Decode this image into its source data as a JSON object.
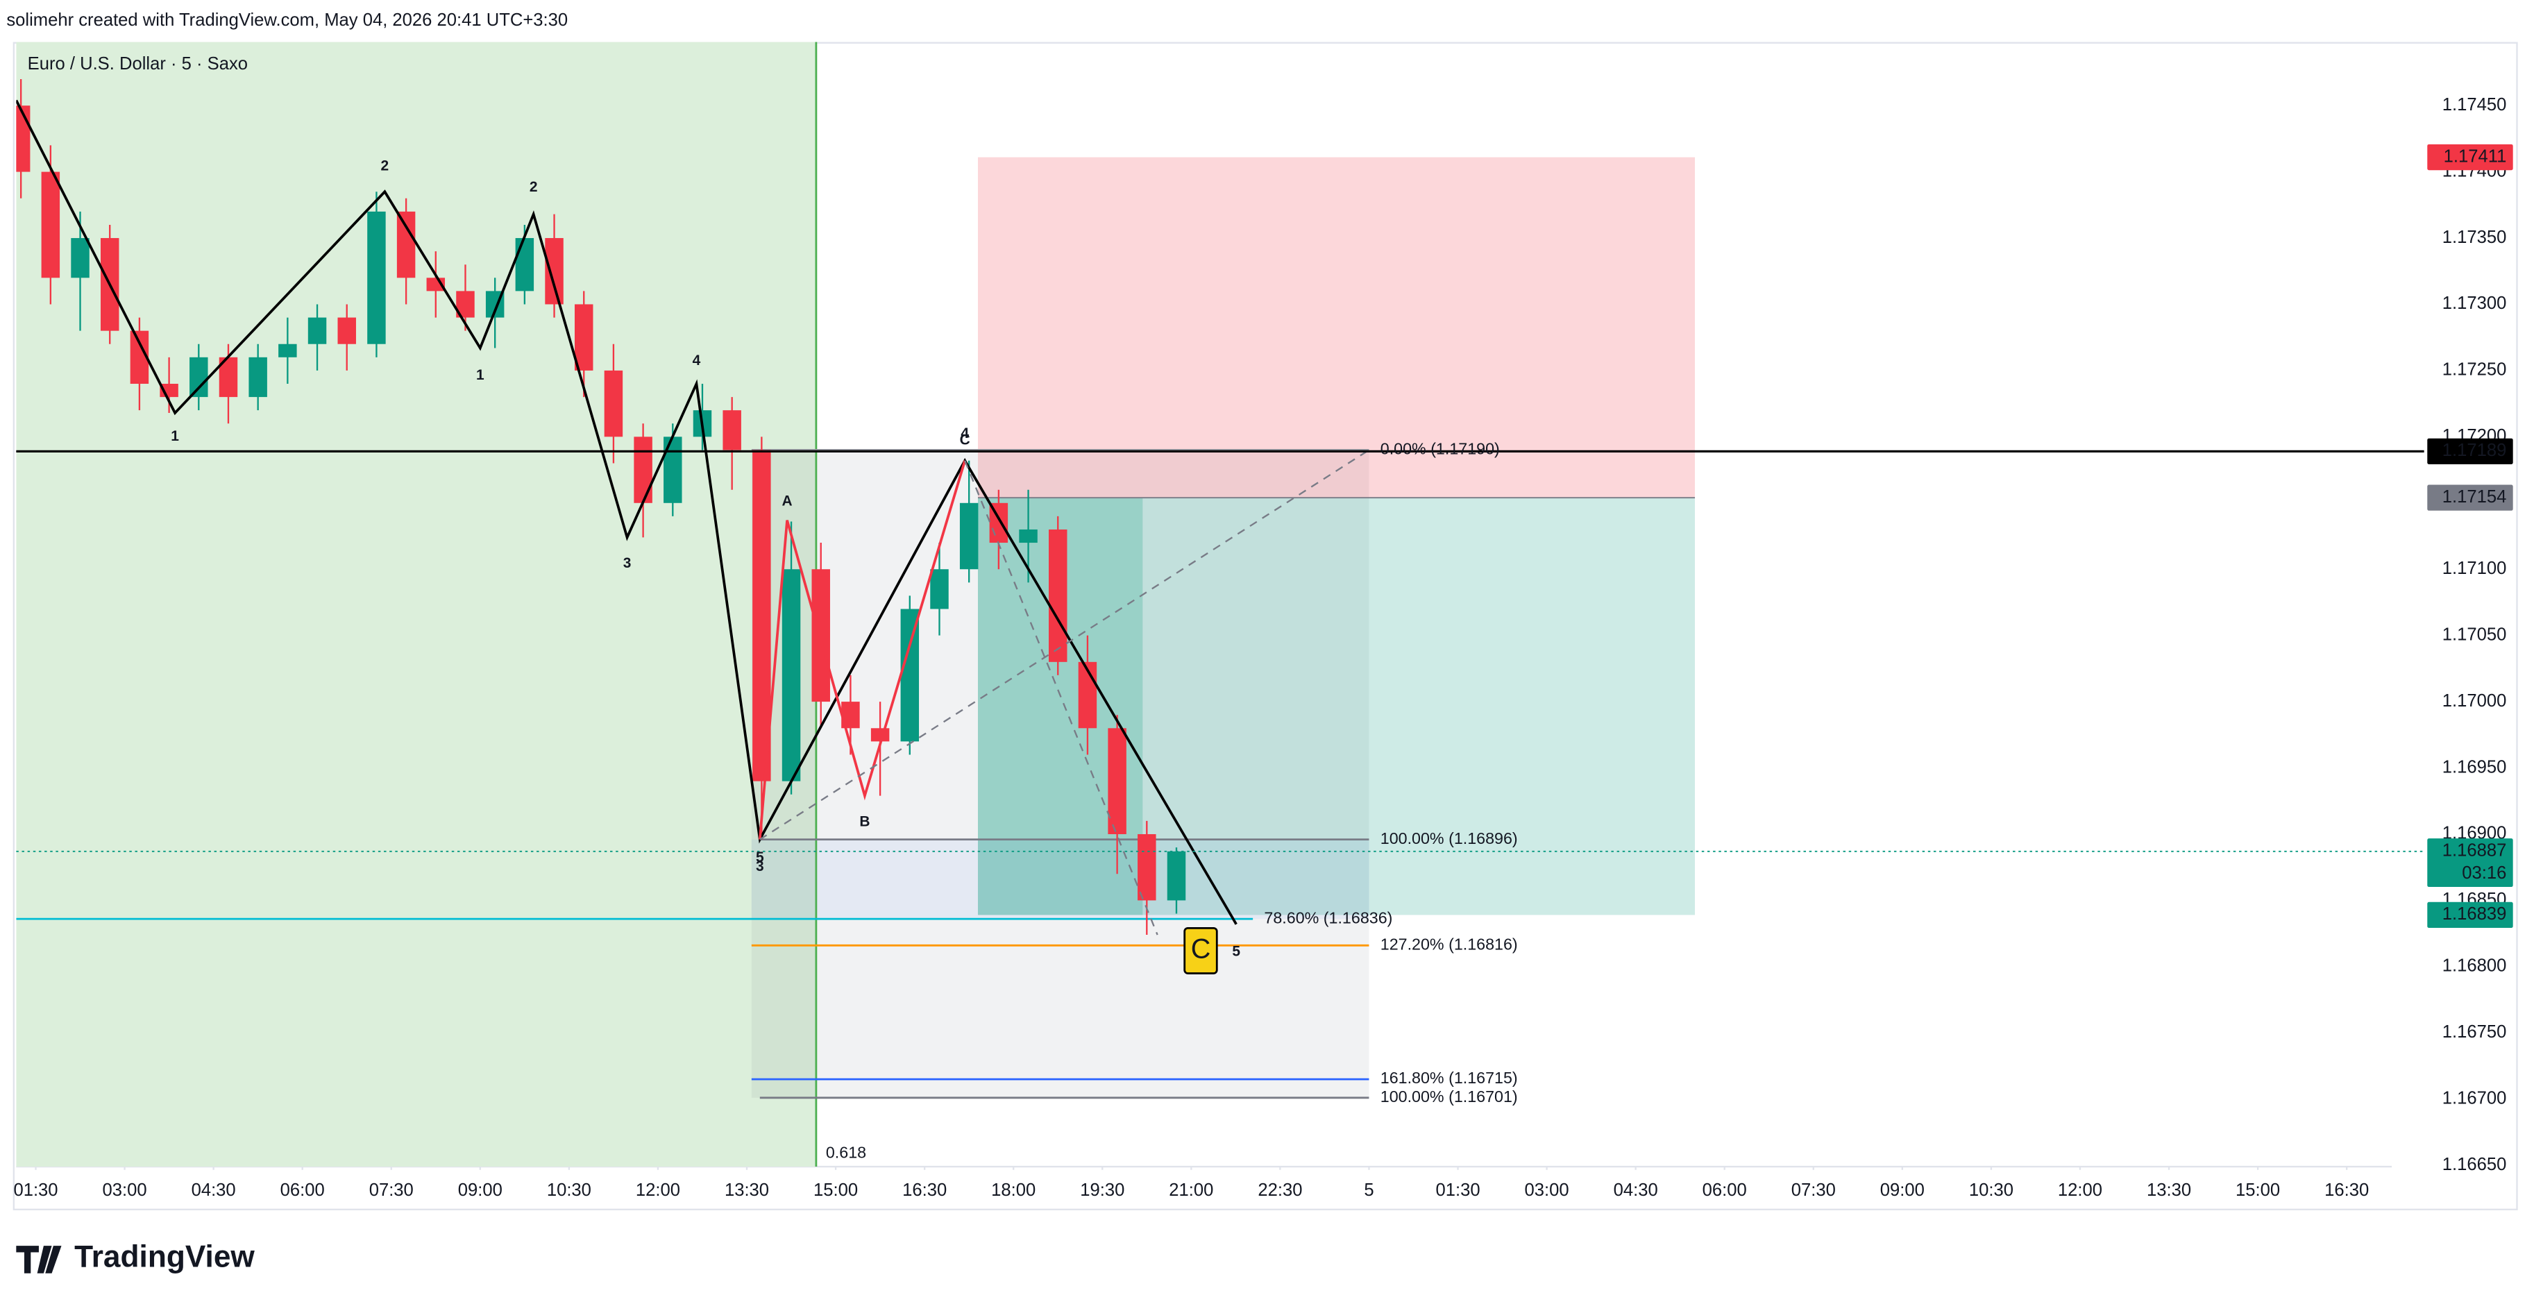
{
  "header": {
    "credit": "solimehr created with TradingView.com, May 04, 2026 20:41 UTC+3:30"
  },
  "footer": {
    "brand": "TradingView"
  },
  "chart_data": {
    "type": "candlestick",
    "title": "Euro / U.S. Dollar · 5 · Saxo",
    "x": [
      1.0,
      1.5,
      2.0,
      2.5,
      3.0,
      3.5,
      4.0,
      4.5,
      5.0,
      5.5,
      6.0,
      6.5,
      7.0,
      7.5,
      8.0,
      8.5,
      9.0,
      9.5,
      10.0,
      10.5,
      11.0,
      11.5,
      12.0,
      12.5,
      13.0,
      13.5,
      14.0,
      14.5,
      15.0,
      15.5,
      16.0,
      16.5,
      17.0,
      17.5,
      18.0,
      18.5,
      19.0,
      19.5,
      20.0,
      20.5
    ],
    "open": [
      1.1745,
      1.174,
      1.1732,
      1.1735,
      1.1728,
      1.1724,
      1.1723,
      1.1726,
      1.1723,
      1.1726,
      1.1727,
      1.1729,
      1.1727,
      1.1737,
      1.1732,
      1.1731,
      1.1729,
      1.1731,
      1.1735,
      1.173,
      1.1725,
      1.172,
      1.1715,
      1.172,
      1.1722,
      1.1719,
      1.1694,
      1.171,
      1.17,
      1.1698,
      1.1697,
      1.1707,
      1.171,
      1.1715,
      1.1712,
      1.1713,
      1.1703,
      1.1698,
      1.169,
      1.1685
    ],
    "high": [
      1.1747,
      1.1742,
      1.1737,
      1.1736,
      1.1729,
      1.1726,
      1.1727,
      1.1727,
      1.1727,
      1.1729,
      1.173,
      1.173,
      1.17385,
      1.1738,
      1.1734,
      1.1733,
      1.1732,
      1.1736,
      1.17368,
      1.1731,
      1.1727,
      1.1721,
      1.1721,
      1.1724,
      1.1723,
      1.172,
      1.17136,
      1.1712,
      1.1702,
      1.17,
      1.1708,
      1.1712,
      1.17182,
      1.1716,
      1.1716,
      1.1714,
      1.1705,
      1.1699,
      1.1691,
      1.1689
    ],
    "low": [
      1.1738,
      1.173,
      1.1728,
      1.1727,
      1.1722,
      1.17218,
      1.1722,
      1.1721,
      1.1722,
      1.1724,
      1.1725,
      1.1725,
      1.1726,
      1.173,
      1.1729,
      1.1728,
      1.17267,
      1.173,
      1.1729,
      1.1723,
      1.1718,
      1.17124,
      1.1714,
      1.1719,
      1.1716,
      1.16896,
      1.1693,
      1.1698,
      1.1696,
      1.16929,
      1.1696,
      1.1705,
      1.1709,
      1.171,
      1.1709,
      1.1702,
      1.1696,
      1.1687,
      1.16824,
      1.1684
    ],
    "close": [
      1.174,
      1.1732,
      1.1735,
      1.1728,
      1.1724,
      1.1723,
      1.1726,
      1.1723,
      1.1726,
      1.1727,
      1.1729,
      1.1727,
      1.1737,
      1.1732,
      1.1731,
      1.1729,
      1.1731,
      1.1735,
      1.173,
      1.1725,
      1.172,
      1.1715,
      1.172,
      1.1722,
      1.1719,
      1.1694,
      1.171,
      1.17,
      1.1698,
      1.1697,
      1.1707,
      1.171,
      1.1715,
      1.1712,
      1.1713,
      1.1703,
      1.1698,
      1.169,
      1.1685,
      1.16887
    ],
    "up_color": "#089981",
    "down_color": "#f23645",
    "xlim": [
      1.17,
      41.26
    ],
    "xticks": [
      {
        "value": 1.5,
        "label": "01:30"
      },
      {
        "value": 3.0,
        "label": "03:00"
      },
      {
        "value": 4.5,
        "label": "04:30"
      },
      {
        "value": 6.0,
        "label": "06:00"
      },
      {
        "value": 7.5,
        "label": "07:30"
      },
      {
        "value": 9.0,
        "label": "09:00"
      },
      {
        "value": 10.5,
        "label": "10:30"
      },
      {
        "value": 12.0,
        "label": "12:00"
      },
      {
        "value": 13.5,
        "label": "13:30"
      },
      {
        "value": 15.0,
        "label": "15:00"
      },
      {
        "value": 16.5,
        "label": "16:30"
      },
      {
        "value": 18.0,
        "label": "18:00"
      },
      {
        "value": 19.5,
        "label": "19:30"
      },
      {
        "value": 21.0,
        "label": "21:00"
      },
      {
        "value": 22.5,
        "label": "22:30"
      },
      {
        "value": 24.0,
        "label": "5"
      },
      {
        "value": 25.5,
        "label": "01:30"
      },
      {
        "value": 27.0,
        "label": "03:00"
      },
      {
        "value": 28.5,
        "label": "04:30"
      },
      {
        "value": 30.0,
        "label": "06:00"
      },
      {
        "value": 31.5,
        "label": "07:30"
      },
      {
        "value": 33.0,
        "label": "09:00"
      },
      {
        "value": 34.5,
        "label": "10:30"
      },
      {
        "value": 36.0,
        "label": "12:00"
      },
      {
        "value": 37.5,
        "label": "13:30"
      },
      {
        "value": 39.0,
        "label": "15:00"
      },
      {
        "value": 40.5,
        "label": "16:30"
      }
    ],
    "ylim": [
      1.16649,
      1.17498
    ],
    "yticks": [
      {
        "value": 1.1665,
        "label": "1.16650"
      },
      {
        "value": 1.167,
        "label": "1.16700"
      },
      {
        "value": 1.1675,
        "label": "1.16750"
      },
      {
        "value": 1.168,
        "label": "1.16800"
      },
      {
        "value": 1.1685,
        "label": "1.16850"
      },
      {
        "value": 1.169,
        "label": "1.16900"
      },
      {
        "value": 1.1695,
        "label": "1.16950"
      },
      {
        "value": 1.17,
        "label": "1.17000"
      },
      {
        "value": 1.1705,
        "label": "1.17050"
      },
      {
        "value": 1.171,
        "label": "1.17100"
      },
      {
        "value": 1.1715,
        "label": "1.17150"
      },
      {
        "value": 1.172,
        "label": "1.17200"
      },
      {
        "value": 1.1725,
        "label": "1.17250"
      },
      {
        "value": 1.173,
        "label": "1.17300"
      },
      {
        "value": 1.1735,
        "label": "1.17350"
      },
      {
        "value": 1.174,
        "label": "1.17400"
      },
      {
        "value": 1.1745,
        "label": "1.17450"
      }
    ],
    "grid": false,
    "zone": {
      "x": [
        1.17,
        14.67
      ],
      "color": "#dcefdb"
    },
    "vline": {
      "x": 14.67,
      "label": "0.618",
      "color": "#4caf50"
    },
    "hlines": [
      {
        "y": 1.17189,
        "color": "#000000",
        "dashed": false
      },
      {
        "y": 1.16887,
        "color": "#089981",
        "dashed": true
      }
    ],
    "fib_box": {
      "x": [
        13.58,
        24.0
      ],
      "y": [
        1.16701,
        1.1719
      ],
      "color": "#787b86"
    },
    "fib_levels": [
      {
        "value": 1.1719,
        "label": "0.00% (1.17190)",
        "color": "#9598a1",
        "x": [
          13.58,
          24.0
        ]
      },
      {
        "value": 1.16896,
        "label": "100.00% (1.16896)",
        "color": "#787b86",
        "x": [
          13.72,
          24.0
        ]
      },
      {
        "value": 1.16836,
        "label": "78.60% (1.16836)",
        "color": "#00bcd4",
        "x": [
          1.17,
          22.04
        ]
      },
      {
        "value": 1.16816,
        "label": "127.20% (1.16816)",
        "color": "#ff9800",
        "x": [
          13.58,
          24.0
        ]
      },
      {
        "value": 1.16715,
        "label": "161.80% (1.16715)",
        "color": "#2962ff",
        "x": [
          13.58,
          24.0
        ]
      },
      {
        "value": 1.16701,
        "label": "100.00% (1.16701)",
        "color": "#787b86",
        "x": [
          13.72,
          24.0
        ]
      }
    ],
    "position": {
      "x": [
        17.4,
        29.5
      ],
      "entry": 1.17154,
      "stop": 1.17411,
      "target": 1.16839,
      "filled_to": 20.18
    },
    "waves": [
      {
        "color": "#000000",
        "dashed": false,
        "points": [
          [
            1.17,
            1.17454
          ],
          [
            3.85,
            1.17218
          ],
          [
            7.39,
            1.17385
          ],
          [
            9.0,
            1.17267
          ],
          [
            9.9,
            1.17368
          ],
          [
            11.48,
            1.17124
          ],
          [
            12.65,
            1.1724
          ],
          [
            13.72,
            1.16896
          ],
          [
            17.18,
            1.17182
          ],
          [
            21.76,
            1.16832
          ]
        ]
      },
      {
        "color": "#f23645",
        "dashed": false,
        "points": [
          [
            13.72,
            1.16896
          ],
          [
            14.18,
            1.17137
          ],
          [
            15.49,
            1.16929
          ],
          [
            17.18,
            1.17182
          ]
        ]
      },
      {
        "color": "#787b86",
        "dashed": true,
        "points": [
          [
            13.72,
            1.16896
          ],
          [
            24.0,
            1.1719
          ]
        ]
      },
      {
        "color": "#787b86",
        "dashed": true,
        "points": [
          [
            17.18,
            1.17182
          ],
          [
            20.43,
            1.16824
          ]
        ]
      }
    ],
    "wave_labels": [
      {
        "text": "1",
        "x": 3.85,
        "y": 1.172,
        "color": "#000000"
      },
      {
        "text": "2",
        "x": 7.39,
        "y": 1.17404,
        "color": "#000000"
      },
      {
        "text": "1",
        "x": 9.0,
        "y": 1.17246,
        "color": "#000000"
      },
      {
        "text": "2",
        "x": 9.9,
        "y": 1.17388,
        "color": "#000000"
      },
      {
        "text": "3",
        "x": 11.48,
        "y": 1.17104,
        "color": "#000000"
      },
      {
        "text": "4",
        "x": 12.65,
        "y": 1.17257,
        "color": "#000000"
      },
      {
        "text": "5",
        "x": 13.72,
        "y": 1.16882,
        "color": "#000000"
      },
      {
        "text": "3",
        "x": 13.72,
        "y": 1.16875,
        "color": "#000000"
      },
      {
        "text": "A",
        "x": 14.18,
        "y": 1.17151,
        "color": "#f23645"
      },
      {
        "text": "B",
        "x": 15.49,
        "y": 1.16909,
        "color": "#f23645"
      },
      {
        "text": "4",
        "x": 17.18,
        "y": 1.17202,
        "color": "#000000"
      },
      {
        "text": "C",
        "x": 17.18,
        "y": 1.17197,
        "color": "#f23645"
      },
      {
        "text": "5",
        "x": 21.76,
        "y": 1.16811,
        "color": "#000000"
      },
      {
        "text": "C",
        "x": 21.16,
        "y": 1.16812,
        "color": "#000000",
        "box": "#f7d117"
      }
    ],
    "price_badges": [
      {
        "value": 1.17411,
        "label": "1.17411",
        "color": "#f23645"
      },
      {
        "value": 1.17189,
        "label": "1.17189",
        "color": "#000000"
      },
      {
        "value": 1.17154,
        "label": "1.17154",
        "color": "#787b86"
      },
      {
        "value": 1.16887,
        "label": "1.16887",
        "sub": "03:16",
        "color": "#089981"
      },
      {
        "value": 1.16839,
        "label": "1.16839",
        "color": "#089981"
      }
    ]
  }
}
